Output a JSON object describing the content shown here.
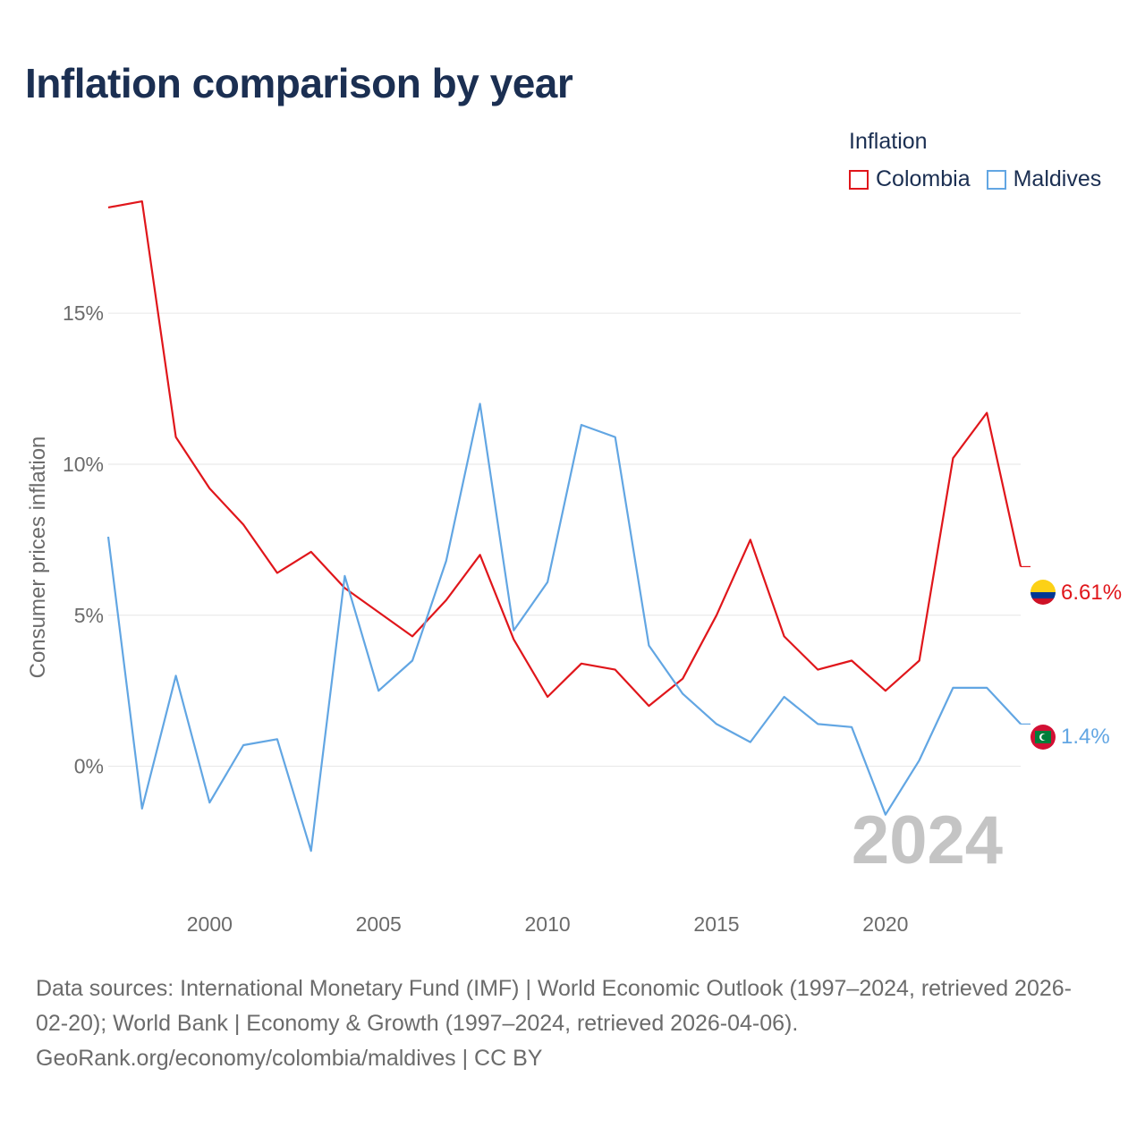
{
  "title": "Inflation comparison by year",
  "legend": {
    "title": "Inflation",
    "items": [
      {
        "label": "Colombia",
        "color": "#e0161b"
      },
      {
        "label": "Maldives",
        "color": "#62a6e3"
      }
    ]
  },
  "footer": {
    "line1": "Data sources: International Monetary Fund (IMF) | World Economic Outlook (1997–2024, retrieved 2026-",
    "line2": "02-20); World Bank | Economy & Growth (1997–2024, retrieved 2026-04-06).",
    "line3": "GeoRank.org/economy/colombia/maldives | CC BY"
  },
  "chart_data": {
    "type": "line",
    "title": "Inflation comparison by year",
    "ylabel": "Consumer prices inflation",
    "xlabel": "",
    "x": [
      1997,
      1998,
      1999,
      2000,
      2001,
      2002,
      2003,
      2004,
      2005,
      2006,
      2007,
      2008,
      2009,
      2010,
      2011,
      2012,
      2013,
      2014,
      2015,
      2016,
      2017,
      2018,
      2019,
      2020,
      2021,
      2022,
      2023,
      2024
    ],
    "xlim": [
      1997,
      2024
    ],
    "ylim": [
      -3.8,
      19
    ],
    "x_ticks": [
      2000,
      2005,
      2010,
      2015,
      2020
    ],
    "y_ticks": [
      0,
      5,
      10,
      15
    ],
    "y_tick_labels": [
      "0%",
      "5%",
      "10%",
      "15%"
    ],
    "year_watermark": "2024",
    "series": [
      {
        "name": "Colombia",
        "color": "#e0161b",
        "end_label": "6.61%",
        "values": [
          18.5,
          18.7,
          10.9,
          9.2,
          8.0,
          6.4,
          7.1,
          5.9,
          5.1,
          4.3,
          5.5,
          7.0,
          4.2,
          2.3,
          3.4,
          3.2,
          2.0,
          2.9,
          5.0,
          7.5,
          4.3,
          3.2,
          3.5,
          2.5,
          3.5,
          10.2,
          11.7,
          6.61
        ]
      },
      {
        "name": "Maldives",
        "color": "#62a6e3",
        "end_label": "1.4%",
        "values": [
          7.6,
          -1.4,
          3.0,
          -1.2,
          0.7,
          0.9,
          -2.8,
          6.3,
          2.5,
          3.5,
          6.8,
          12.0,
          4.5,
          6.1,
          11.3,
          10.9,
          4.0,
          2.4,
          1.4,
          0.8,
          2.3,
          1.4,
          1.3,
          -1.6,
          0.2,
          2.6,
          2.6,
          1.4
        ]
      }
    ]
  }
}
